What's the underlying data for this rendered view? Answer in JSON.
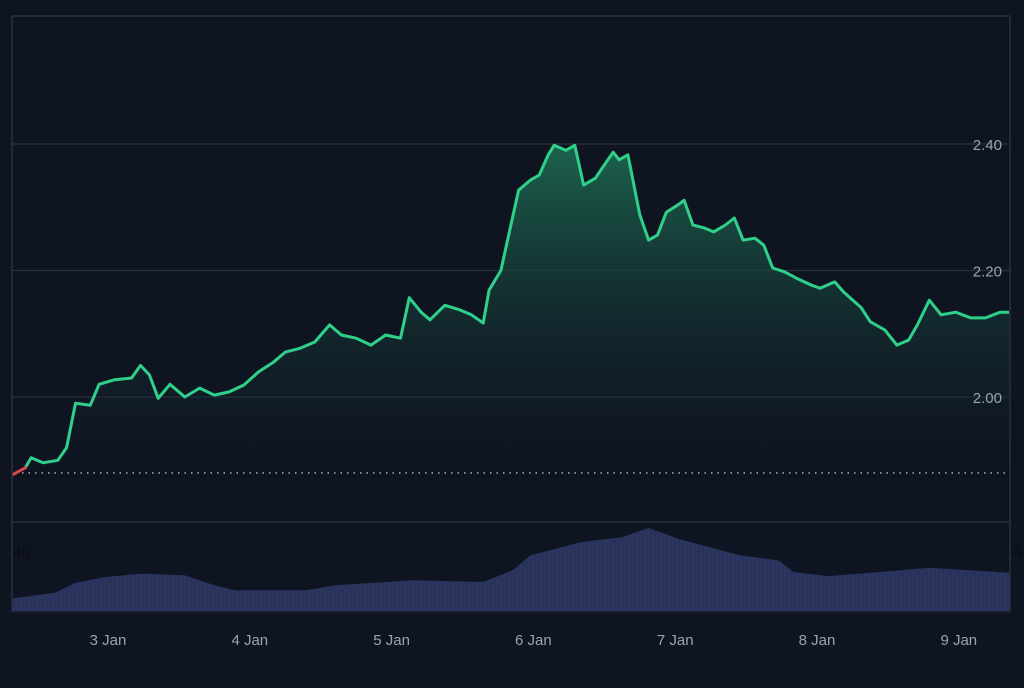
{
  "chart_data": {
    "type": "area",
    "title": "",
    "xlabel": "",
    "ylabel": "",
    "ylim": [
      1.85,
      2.6
    ],
    "y_axis_position": "right",
    "y_ticks": [
      "2.00",
      "2.20",
      "2.40"
    ],
    "x_ticks": [
      "3 Jan",
      "4 Jan",
      "5 Jan",
      "6 Jan",
      "7 Jan",
      "8 Jan",
      "9 Jan"
    ],
    "x_range": [
      "2 Jan 07:40",
      "9 Jan 08:40"
    ],
    "baseline": 1.88,
    "grid": "horizontal",
    "colors": {
      "up": "#2fd08a",
      "down": "#e0474c",
      "volume": "#2b3560",
      "background": "#0f1421",
      "grid": "#2a3040",
      "text": "#9aa3b5"
    },
    "series": [
      {
        "points": [
          [
            "2 Jan 08:00",
            1.878
          ],
          [
            "2 Jan 10:00",
            1.888
          ],
          [
            "2 Jan 11:00",
            1.904
          ],
          [
            "2 Jan 13:00",
            1.896
          ],
          [
            "2 Jan 15:30",
            1.9
          ],
          [
            "2 Jan 17:00",
            1.92
          ],
          [
            "2 Jan 18:30",
            1.99
          ],
          [
            "2 Jan 21:00",
            1.987
          ],
          [
            "2 Jan 22:30",
            2.02
          ],
          [
            "3 Jan 01:00",
            2.027
          ],
          [
            "3 Jan 04:00",
            2.03
          ],
          [
            "3 Jan 05:30",
            2.05
          ],
          [
            "3 Jan 07:00",
            2.035
          ],
          [
            "3 Jan 08:30",
            1.998
          ],
          [
            "3 Jan 10:30",
            2.02
          ],
          [
            "3 Jan 13:00",
            2.0
          ],
          [
            "3 Jan 15:30",
            2.014
          ],
          [
            "3 Jan 18:00",
            2.003
          ],
          [
            "3 Jan 20:30",
            2.008
          ],
          [
            "3 Jan 23:00",
            2.019
          ],
          [
            "4 Jan 01:30",
            2.04
          ],
          [
            "4 Jan 04:00",
            2.055
          ],
          [
            "4 Jan 06:00",
            2.071
          ],
          [
            "4 Jan 08:30",
            2.077
          ],
          [
            "4 Jan 11:00",
            2.087
          ],
          [
            "4 Jan 13:30",
            2.114
          ],
          [
            "4 Jan 15:30",
            2.098
          ],
          [
            "4 Jan 18:00",
            2.093
          ],
          [
            "4 Jan 20:30",
            2.082
          ],
          [
            "4 Jan 23:00",
            2.098
          ],
          [
            "5 Jan 01:30",
            2.093
          ],
          [
            "5 Jan 03:00",
            2.157
          ],
          [
            "5 Jan 05:00",
            2.134
          ],
          [
            "5 Jan 06:30",
            2.122
          ],
          [
            "5 Jan 09:00",
            2.145
          ],
          [
            "5 Jan 11:30",
            2.138
          ],
          [
            "5 Jan 13:30",
            2.13
          ],
          [
            "5 Jan 15:30",
            2.117
          ],
          [
            "5 Jan 16:30",
            2.169
          ],
          [
            "5 Jan 18:30",
            2.2
          ],
          [
            "5 Jan 20:00",
            2.264
          ],
          [
            "5 Jan 21:30",
            2.327
          ],
          [
            "5 Jan 23:30",
            2.343
          ],
          [
            "6 Jan 01:00",
            2.351
          ],
          [
            "6 Jan 02:30",
            2.383
          ],
          [
            "6 Jan 03:30",
            2.398
          ],
          [
            "6 Jan 05:30",
            2.39
          ],
          [
            "6 Jan 07:00",
            2.398
          ],
          [
            "6 Jan 08:30",
            2.335
          ],
          [
            "6 Jan 10:30",
            2.346
          ],
          [
            "6 Jan 12:00",
            2.367
          ],
          [
            "6 Jan 13:30",
            2.387
          ],
          [
            "6 Jan 14:30",
            2.375
          ],
          [
            "6 Jan 16:00",
            2.383
          ],
          [
            "6 Jan 18:00",
            2.288
          ],
          [
            "6 Jan 19:30",
            2.248
          ],
          [
            "6 Jan 21:00",
            2.256
          ],
          [
            "6 Jan 22:30",
            2.292
          ],
          [
            "7 Jan 00:30",
            2.304
          ],
          [
            "7 Jan 01:30",
            2.311
          ],
          [
            "7 Jan 03:00",
            2.272
          ],
          [
            "7 Jan 05:00",
            2.267
          ],
          [
            "7 Jan 06:30",
            2.261
          ],
          [
            "7 Jan 08:30",
            2.272
          ],
          [
            "7 Jan 10:00",
            2.283
          ],
          [
            "7 Jan 11:30",
            2.248
          ],
          [
            "7 Jan 13:30",
            2.251
          ],
          [
            "7 Jan 15:00",
            2.24
          ],
          [
            "7 Jan 16:30",
            2.204
          ],
          [
            "7 Jan 18:30",
            2.198
          ],
          [
            "7 Jan 20:30",
            2.188
          ],
          [
            "7 Jan 23:00",
            2.177
          ],
          [
            "8 Jan 00:30",
            2.172
          ],
          [
            "8 Jan 03:00",
            2.182
          ],
          [
            "8 Jan 04:30",
            2.166
          ],
          [
            "8 Jan 07:30",
            2.141
          ],
          [
            "8 Jan 09:00",
            2.119
          ],
          [
            "8 Jan 11:30",
            2.106
          ],
          [
            "8 Jan 13:30",
            2.082
          ],
          [
            "8 Jan 15:30",
            2.09
          ],
          [
            "8 Jan 17:00",
            2.114
          ],
          [
            "8 Jan 19:00",
            2.153
          ],
          [
            "8 Jan 21:00",
            2.13
          ],
          [
            "8 Jan 23:30",
            2.134
          ],
          [
            "9 Jan 02:00",
            2.125
          ],
          [
            "9 Jan 04:30",
            2.125
          ],
          [
            "9 Jan 07:00",
            2.134
          ],
          [
            "9 Jan 08:30",
            2.134
          ]
        ]
      }
    ],
    "volume": {
      "axis_label_left": "40",
      "axis_label_right": "A",
      "points": [
        [
          "2 Jan 07:40",
          15
        ],
        [
          "2 Jan 15:00",
          22
        ],
        [
          "2 Jan 18:30",
          34
        ],
        [
          "2 Jan 23:30",
          41
        ],
        [
          "3 Jan 06:00",
          45
        ],
        [
          "3 Jan 13:00",
          43
        ],
        [
          "3 Jan 18:00",
          31
        ],
        [
          "3 Jan 21:30",
          25
        ],
        [
          "4 Jan 09:30",
          25
        ],
        [
          "4 Jan 14:30",
          31
        ],
        [
          "4 Jan 01:00",
          25
        ],
        [
          "5 Jan 03:30",
          37
        ],
        [
          "5 Jan 15:30",
          35
        ],
        [
          "5 Jan 20:30",
          49
        ],
        [
          "5 Jan 23:30",
          67
        ],
        [
          "6 Jan 08:00",
          83
        ],
        [
          "6 Jan 15:00",
          89
        ],
        [
          "6 Jan 19:30",
          100
        ],
        [
          "7 Jan 01:00",
          86
        ],
        [
          "7 Jan 11:00",
          67
        ],
        [
          "7 Jan 17:30",
          61
        ],
        [
          "7 Jan 20:00",
          47
        ],
        [
          "8 Jan 02:00",
          42
        ],
        [
          "8 Jan 09:00",
          46
        ],
        [
          "8 Jan 19:00",
          52
        ],
        [
          "9 Jan 08:40",
          46
        ]
      ]
    }
  }
}
